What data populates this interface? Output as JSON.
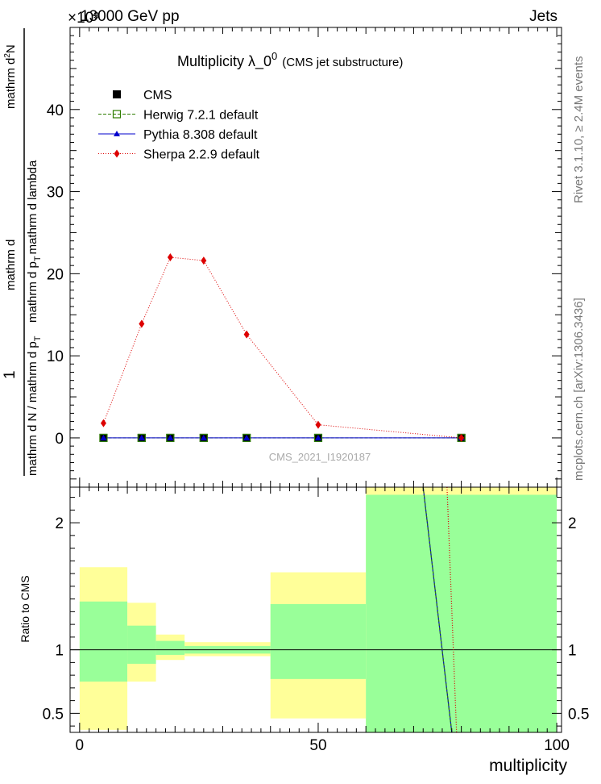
{
  "header": {
    "energy_label": "13000 GeV pp",
    "exponent_label": "×10³",
    "process_label": "Jets"
  },
  "side_labels": {
    "rivet": "Rivet 3.1.10, ≥ 2.4M events",
    "mcplots": "mcplots.cern.ch [arXiv:1306.3436]"
  },
  "watermark": "CMS_2021_I1920187",
  "chart_data": [
    {
      "type": "line",
      "title_main": "Multiplicity  λ_0",
      "title_sup": "0",
      "title_sub": "(CMS jet substructure)",
      "ylabel_num": "1",
      "ylabel_den_a": "mathrm d N / mathrm d p",
      "ylabel_den_b": "T",
      "ylabel_num2_a": "mathrm d",
      "ylabel_num2_sup": "2",
      "ylabel_num2_b": "N",
      "ylabel_den2_a": "mathrm d p",
      "ylabel_den2_b": "T",
      "ylabel_den2_c": "mathrm d lambda",
      "xlim": [
        -2,
        101
      ],
      "ylim": [
        -6,
        50
      ],
      "yticks": [
        0,
        10,
        20,
        30,
        40
      ],
      "ytick_labels": [
        "0",
        "10",
        "20",
        "30",
        "40"
      ],
      "series": [
        {
          "name": "CMS",
          "color": "#000000",
          "style": "marker-square",
          "x": [
            5,
            13,
            19,
            26,
            35,
            50,
            80
          ],
          "y": [
            0,
            0,
            0,
            0,
            0,
            0,
            0
          ]
        },
        {
          "name": "Herwig 7.2.1 default",
          "color": "#2e7d00",
          "style": "dashed-open-square",
          "x": [
            5,
            13,
            19,
            26,
            35,
            50,
            80
          ],
          "y": [
            0,
            0,
            0,
            0,
            0,
            0,
            0
          ]
        },
        {
          "name": "Pythia 8.308 default",
          "color": "#0000cc",
          "style": "solid-triangle",
          "x": [
            5,
            13,
            19,
            26,
            35,
            50,
            80
          ],
          "y": [
            0,
            0,
            0,
            0,
            0,
            0,
            0
          ]
        },
        {
          "name": "Sherpa 2.2.9 default",
          "color": "#dd0000",
          "style": "dotted-diamond",
          "x": [
            5,
            13,
            19,
            26,
            35,
            50,
            80
          ],
          "y": [
            1.8,
            13.9,
            22.0,
            21.6,
            12.6,
            1.6,
            0
          ]
        }
      ]
    },
    {
      "type": "area",
      "ylabel": "Ratio to CMS",
      "xlabel": "multiplicity",
      "xlim": [
        -2,
        101
      ],
      "ylim": [
        0.35,
        2.28
      ],
      "xticks": [
        0,
        50,
        100
      ],
      "xtick_labels": [
        "0",
        "50",
        "100"
      ],
      "yticks": [
        0.5,
        1,
        2
      ],
      "ytick_labels": [
        "0.5",
        "1",
        "2"
      ],
      "reference_line": 1,
      "bands": [
        {
          "x0": 0,
          "x1": 10,
          "green": [
            0.75,
            1.38
          ],
          "yellow": [
            0.37,
            1.65
          ]
        },
        {
          "x0": 10,
          "x1": 16,
          "green": [
            0.89,
            1.19
          ],
          "yellow": [
            0.75,
            1.37
          ]
        },
        {
          "x0": 16,
          "x1": 22,
          "green": [
            0.96,
            1.07
          ],
          "yellow": [
            0.92,
            1.12
          ]
        },
        {
          "x0": 22,
          "x1": 40,
          "green": [
            0.97,
            1.03
          ],
          "yellow": [
            0.95,
            1.06
          ]
        },
        {
          "x0": 40,
          "x1": 60,
          "green": [
            0.77,
            1.36
          ],
          "yellow": [
            0.46,
            1.61
          ]
        },
        {
          "x0": 60,
          "x1": 100,
          "green": [
            0.35,
            2.22
          ],
          "yellow": [
            0.35,
            2.28
          ]
        }
      ],
      "ratio_lines": [
        {
          "name": "Pythia 8.308 default",
          "color": "#0000cc",
          "dash": "",
          "points": [
            [
              72,
              2.28
            ],
            [
              78,
              0.35
            ]
          ]
        },
        {
          "name": "Herwig 7.2.1 default",
          "color": "#2e7d00",
          "dash": "3,2",
          "points": [
            [
              72,
              2.28
            ],
            [
              78,
              0.35
            ]
          ]
        },
        {
          "name": "Sherpa 2.2.9 default",
          "color": "#dd0000",
          "dash": "1,2",
          "points": [
            [
              77,
              2.28
            ],
            [
              79,
              0.35
            ]
          ]
        }
      ]
    }
  ]
}
